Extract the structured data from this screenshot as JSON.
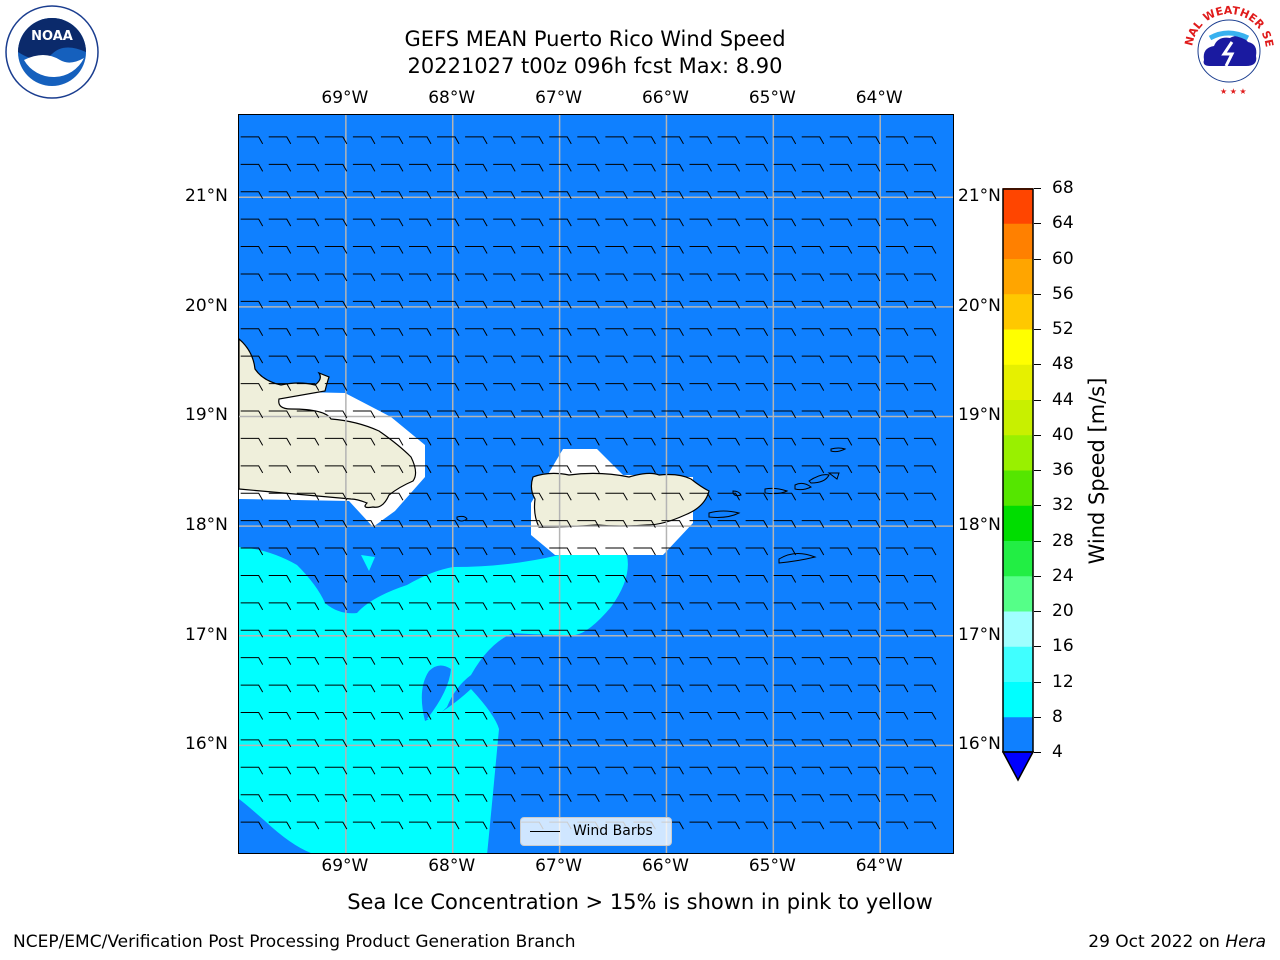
{
  "title": {
    "line1": "GEFS MEAN Puerto Rico Wind Speed",
    "line2": "20221027 t00z 096h fcst   Max: 8.90"
  },
  "logos": {
    "left": {
      "name": "NOAA",
      "text": "NOAA"
    },
    "right": {
      "name": "NATIONAL WEATHER SERVICE"
    }
  },
  "map": {
    "projection": "PlateCarree",
    "extent": {
      "lon_min": -70.0,
      "lon_max": -63.3,
      "lat_min": 15.0,
      "lat_max": 21.75
    },
    "lon_ticks": [
      {
        "value": -69,
        "label": "69°W"
      },
      {
        "value": -68,
        "label": "68°W"
      },
      {
        "value": -67,
        "label": "67°W"
      },
      {
        "value": -66,
        "label": "66°W"
      },
      {
        "value": -65,
        "label": "65°W"
      },
      {
        "value": -64,
        "label": "64°W"
      }
    ],
    "lat_ticks": [
      {
        "value": 21,
        "label": "21°N"
      },
      {
        "value": 20,
        "label": "20°N"
      },
      {
        "value": 19,
        "label": "19°N"
      },
      {
        "value": 18,
        "label": "18°N"
      },
      {
        "value": 17,
        "label": "17°N"
      },
      {
        "value": 16,
        "label": "16°N"
      }
    ],
    "gridlines": true,
    "field": "wind speed [m/s]",
    "background_color": "#0f80ff",
    "land_color": "#efefdb",
    "masked_color": "#ffffff",
    "regions": [
      {
        "name": "wind-4-8",
        "color": "#0f80ff",
        "coverage": "most of domain"
      },
      {
        "name": "wind-8-12",
        "color": "#00ffff",
        "coverage": "southwest"
      }
    ],
    "wind_barbs": {
      "direction": "easterly",
      "spacing_deg": 0.25
    },
    "legend_entry": "Wind Barbs"
  },
  "colorbar": {
    "label": "Wind Speed [m/s]",
    "ticks": [
      "68",
      "64",
      "60",
      "56",
      "52",
      "48",
      "44",
      "40",
      "36",
      "32",
      "28",
      "24",
      "20",
      "16",
      "12",
      "8",
      "4"
    ],
    "levels": [
      4,
      8,
      12,
      16,
      20,
      24,
      28,
      32,
      36,
      40,
      44,
      48,
      52,
      56,
      60,
      64,
      68
    ],
    "colors": [
      "#0f80ff",
      "#00ffff",
      "#40ffff",
      "#a0ffff",
      "#55ff88",
      "#22ee44",
      "#00dd00",
      "#55e600",
      "#99f000",
      "#c8f000",
      "#e6f000",
      "#ffff00",
      "#ffc800",
      "#ffa500",
      "#ff8000",
      "#ff4500",
      "#ff2000",
      "#ff0000"
    ],
    "extend_min_color": "#0000ff"
  },
  "caption": "Sea Ice Concentration > 15% is shown in pink to yellow",
  "footer": {
    "left": "NCEP/EMC/Verification Post Processing Product Generation Branch",
    "right_date": "29 Oct 2022 on ",
    "right_host": "Hera"
  }
}
